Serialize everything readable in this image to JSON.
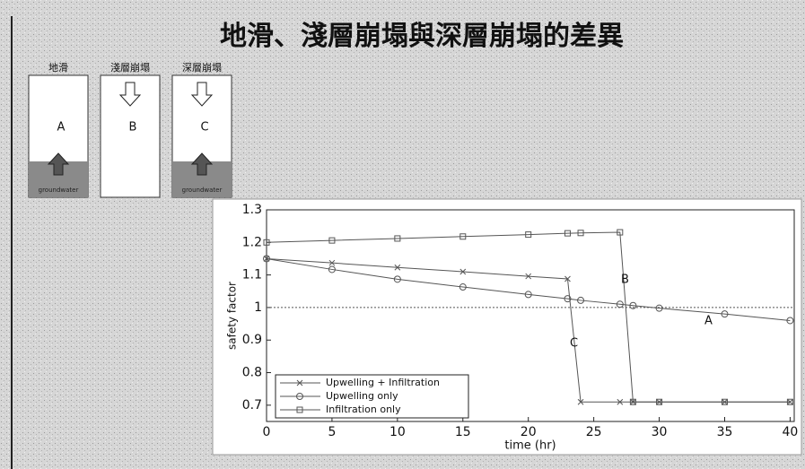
{
  "title": "地滑、淺層崩塌與深層崩塌的差異",
  "diagram": {
    "boxes": [
      {
        "heading": "地滑",
        "letter": "A",
        "footer": "groundwater"
      },
      {
        "heading": "淺層崩塌",
        "letter": "B"
      },
      {
        "heading": "深層崩塌",
        "letter": "C",
        "footer": "groundwater"
      }
    ]
  },
  "chart_data": {
    "type": "line",
    "xlabel": "time (hr)",
    "ylabel": "safety factor",
    "x": [
      0,
      5,
      10,
      15,
      20,
      23,
      24,
      27,
      28,
      30,
      35,
      40
    ],
    "series": [
      {
        "name": "Upwelling + Infiltration",
        "color": "#555555",
        "marker": "x",
        "values": [
          1.15,
          1.137,
          1.123,
          1.11,
          1.096,
          1.088,
          0.71,
          0.71,
          0.71,
          0.71,
          0.71,
          0.71
        ]
      },
      {
        "name": "Upwelling only",
        "color": "#555555",
        "marker": "o",
        "values": [
          1.15,
          1.117,
          1.087,
          1.063,
          1.04,
          1.027,
          1.022,
          1.01,
          1.006,
          0.998,
          0.98,
          0.96
        ]
      },
      {
        "name": "Infiltration only",
        "color": "#555555",
        "marker": "s",
        "values": [
          1.2,
          1.206,
          1.212,
          1.218,
          1.224,
          1.228,
          1.229,
          1.231,
          0.71,
          0.71,
          0.71,
          0.71
        ]
      }
    ],
    "xlim": [
      0,
      41
    ],
    "ylim": [
      0.65,
      1.3
    ],
    "xticks": [
      0,
      5,
      10,
      15,
      20,
      25,
      30,
      35,
      40
    ],
    "yticks": [
      0.7,
      0.8,
      0.9,
      1,
      1.1,
      1.2,
      1.3
    ],
    "reference_line": 1,
    "annotations": [
      "A",
      "B",
      "C"
    ],
    "legend": "lower left"
  }
}
